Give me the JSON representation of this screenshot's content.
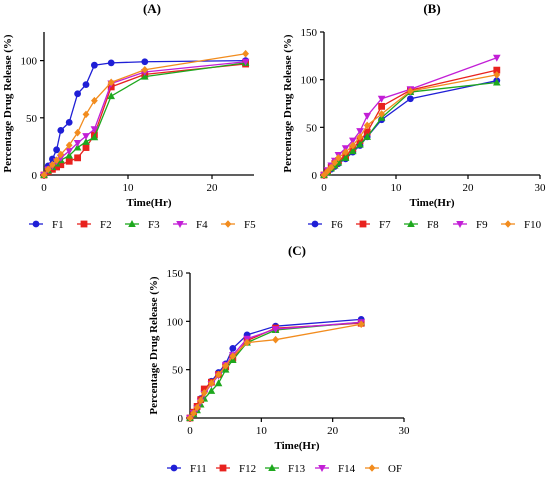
{
  "chart_data": [
    {
      "panel_label": "(A)",
      "type": "line",
      "xlabel": "Time(Hr)",
      "ylabel": "Percentage Drug Release (%)",
      "xlim": [
        0,
        25
      ],
      "ylim": [
        0,
        125
      ],
      "xticks": [
        0,
        10,
        20
      ],
      "yticks": [
        0,
        50,
        100
      ],
      "legend_position": "bottom",
      "series": [
        {
          "name": "F1",
          "color": "#1f1fd6",
          "marker": "circle",
          "x": [
            0,
            0.5,
            1,
            1.5,
            2,
            3,
            4,
            5,
            6,
            8,
            12,
            24
          ],
          "y": [
            0,
            8,
            14,
            22,
            39,
            46,
            71,
            79,
            96,
            98,
            99,
            100
          ]
        },
        {
          "name": "F2",
          "color": "#e8221e",
          "marker": "square",
          "x": [
            0,
            0.5,
            1,
            1.5,
            2,
            3,
            4,
            5,
            6,
            8,
            12,
            24
          ],
          "y": [
            0,
            3,
            5,
            7,
            9,
            12,
            15,
            24,
            35,
            77,
            88,
            97
          ]
        },
        {
          "name": "F3",
          "color": "#1ea81e",
          "marker": "triangle-up",
          "x": [
            0,
            0.5,
            1,
            1.5,
            2,
            3,
            4,
            5,
            6,
            8,
            12,
            24
          ],
          "y": [
            0,
            4,
            7,
            10,
            13,
            17,
            24,
            29,
            33,
            69,
            86,
            98
          ]
        },
        {
          "name": "F4",
          "color": "#c21ed6",
          "marker": "triangle-down",
          "x": [
            0,
            0.5,
            1,
            1.5,
            2,
            3,
            4,
            5,
            6,
            8,
            12,
            24
          ],
          "y": [
            0,
            5,
            8,
            12,
            15,
            21,
            28,
            34,
            40,
            80,
            90,
            99
          ]
        },
        {
          "name": "F5",
          "color": "#f28c1e",
          "marker": "diamond",
          "x": [
            0,
            0.5,
            1,
            1.5,
            2,
            3,
            4,
            5,
            6,
            8,
            12,
            24
          ],
          "y": [
            0,
            5,
            9,
            13,
            18,
            26,
            37,
            53,
            65,
            81,
            92,
            106
          ]
        }
      ]
    },
    {
      "panel_label": "(B)",
      "type": "line",
      "xlabel": "Time(Hr)",
      "ylabel": "Percentage Drug Release (%)",
      "xlim": [
        0,
        30
      ],
      "ylim": [
        0,
        150
      ],
      "xticks": [
        0,
        10,
        20,
        30
      ],
      "yticks": [
        0,
        50,
        100,
        150
      ],
      "legend_position": "bottom",
      "series": [
        {
          "name": "F6",
          "color": "#1f1fd6",
          "marker": "circle",
          "x": [
            0,
            0.5,
            1,
            1.5,
            2,
            3,
            4,
            5,
            6,
            8,
            12,
            24
          ],
          "y": [
            0,
            3,
            6,
            9,
            12,
            17,
            24,
            31,
            40,
            58,
            80,
            99
          ]
        },
        {
          "name": "F7",
          "color": "#e8221e",
          "marker": "square",
          "x": [
            0,
            0.5,
            1,
            1.5,
            2,
            3,
            4,
            5,
            6,
            8,
            12,
            24
          ],
          "y": [
            0,
            4,
            8,
            12,
            15,
            20,
            28,
            36,
            45,
            72,
            89,
            110
          ]
        },
        {
          "name": "F8",
          "color": "#1ea81e",
          "marker": "triangle-up",
          "x": [
            0,
            0.5,
            1,
            1.5,
            2,
            3,
            4,
            5,
            6,
            8,
            12,
            24
          ],
          "y": [
            0,
            3,
            7,
            10,
            13,
            18,
            25,
            32,
            40,
            60,
            87,
            97
          ]
        },
        {
          "name": "F9",
          "color": "#c21ed6",
          "marker": "triangle-down",
          "x": [
            0,
            0.5,
            1,
            1.5,
            2,
            3,
            4,
            5,
            6,
            8,
            12,
            24
          ],
          "y": [
            0,
            5,
            10,
            15,
            21,
            28,
            36,
            46,
            62,
            80,
            90,
            123
          ]
        },
        {
          "name": "F10",
          "color": "#f28c1e",
          "marker": "diamond",
          "x": [
            0,
            0.5,
            1,
            1.5,
            2,
            3,
            4,
            5,
            6,
            8,
            12,
            24
          ],
          "y": [
            0,
            4,
            8,
            13,
            18,
            24,
            31,
            40,
            52,
            64,
            88,
            105
          ]
        }
      ]
    },
    {
      "panel_label": "(C)",
      "type": "line",
      "xlabel": "Time(Hr)",
      "ylabel": "Percentage Drug Release (%)",
      "xlim": [
        0,
        30
      ],
      "ylim": [
        0,
        150
      ],
      "xticks": [
        0,
        10,
        20,
        30
      ],
      "yticks": [
        0,
        50,
        100,
        150
      ],
      "legend_position": "bottom",
      "series": [
        {
          "name": "F11",
          "color": "#1f1fd6",
          "marker": "circle",
          "x": [
            0,
            0.5,
            1,
            1.5,
            2,
            3,
            4,
            5,
            6,
            8,
            12,
            24
          ],
          "y": [
            0,
            5,
            10,
            20,
            29,
            38,
            47,
            56,
            72,
            86,
            95,
            102
          ]
        },
        {
          "name": "F12",
          "color": "#e8221e",
          "marker": "square",
          "x": [
            0,
            0.5,
            1,
            1.5,
            2,
            3,
            4,
            5,
            6,
            8,
            12,
            24
          ],
          "y": [
            0,
            6,
            12,
            19,
            30,
            37,
            45,
            53,
            62,
            80,
            93,
            98
          ]
        },
        {
          "name": "F13",
          "color": "#1ea81e",
          "marker": "triangle-up",
          "x": [
            0,
            0.5,
            1,
            1.5,
            2,
            3,
            4,
            5,
            6,
            8,
            12,
            24
          ],
          "y": [
            0,
            4,
            8,
            14,
            20,
            28,
            36,
            50,
            60,
            78,
            91,
            99
          ]
        },
        {
          "name": "F14",
          "color": "#c21ed6",
          "marker": "triangle-down",
          "x": [
            0,
            0.5,
            1,
            1.5,
            2,
            3,
            4,
            5,
            6,
            8,
            12,
            24
          ],
          "y": [
            0,
            5,
            10,
            17,
            25,
            35,
            44,
            55,
            65,
            82,
            92,
            99
          ]
        },
        {
          "name": "OF",
          "color": "#f28c1e",
          "marker": "diamond",
          "x": [
            0,
            0.5,
            1,
            1.5,
            2,
            3,
            4,
            5,
            6,
            8,
            12,
            24
          ],
          "y": [
            0,
            5,
            11,
            18,
            26,
            36,
            45,
            54,
            64,
            78,
            81,
            97
          ]
        }
      ]
    }
  ]
}
